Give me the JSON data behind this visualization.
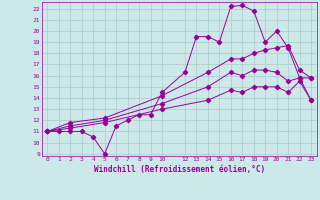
{
  "xlabel": "Windchill (Refroidissement éolien,°C)",
  "bg_color": "#cce8e8",
  "line_color": "#990099",
  "grid_color": "#aacccc",
  "ylim": [
    8.8,
    22.6
  ],
  "xlim": [
    -0.5,
    23.5
  ],
  "yticks": [
    9,
    10,
    11,
    12,
    13,
    14,
    15,
    16,
    17,
    18,
    19,
    20,
    21,
    22
  ],
  "xticks": [
    0,
    1,
    2,
    3,
    4,
    5,
    6,
    7,
    8,
    9,
    10,
    12,
    13,
    14,
    15,
    16,
    17,
    18,
    19,
    20,
    21,
    22,
    23
  ],
  "line1_x": [
    0,
    1,
    2,
    3,
    4,
    5,
    6,
    7,
    8,
    9,
    10,
    12,
    13,
    14,
    15,
    16,
    17,
    18,
    19,
    20,
    21,
    22,
    23
  ],
  "line1_y": [
    11,
    11,
    11,
    11,
    10.5,
    9,
    11.5,
    12,
    12.5,
    12.5,
    14.5,
    16.3,
    19.5,
    19.5,
    19.0,
    22.2,
    22.3,
    21.8,
    19.0,
    20.0,
    18.5,
    15.8,
    13.8
  ],
  "line2_x": [
    0,
    2,
    5,
    10,
    14,
    16,
    17,
    18,
    19,
    20,
    21,
    22,
    23
  ],
  "line2_y": [
    11,
    11.8,
    12.2,
    14.2,
    16.3,
    17.5,
    17.5,
    18.0,
    18.3,
    18.5,
    18.7,
    16.5,
    15.8
  ],
  "line3_x": [
    0,
    2,
    5,
    10,
    14,
    16,
    17,
    18,
    19,
    20,
    21,
    22,
    23
  ],
  "line3_y": [
    11,
    11.5,
    12.0,
    13.5,
    15.0,
    16.3,
    16.0,
    16.5,
    16.5,
    16.3,
    15.5,
    15.8,
    15.8
  ],
  "line4_x": [
    0,
    2,
    5,
    10,
    14,
    16,
    17,
    18,
    19,
    20,
    21,
    22,
    23
  ],
  "line4_y": [
    11,
    11.3,
    11.8,
    13.0,
    13.8,
    14.7,
    14.5,
    15.0,
    15.0,
    15.0,
    14.5,
    15.5,
    13.8
  ]
}
